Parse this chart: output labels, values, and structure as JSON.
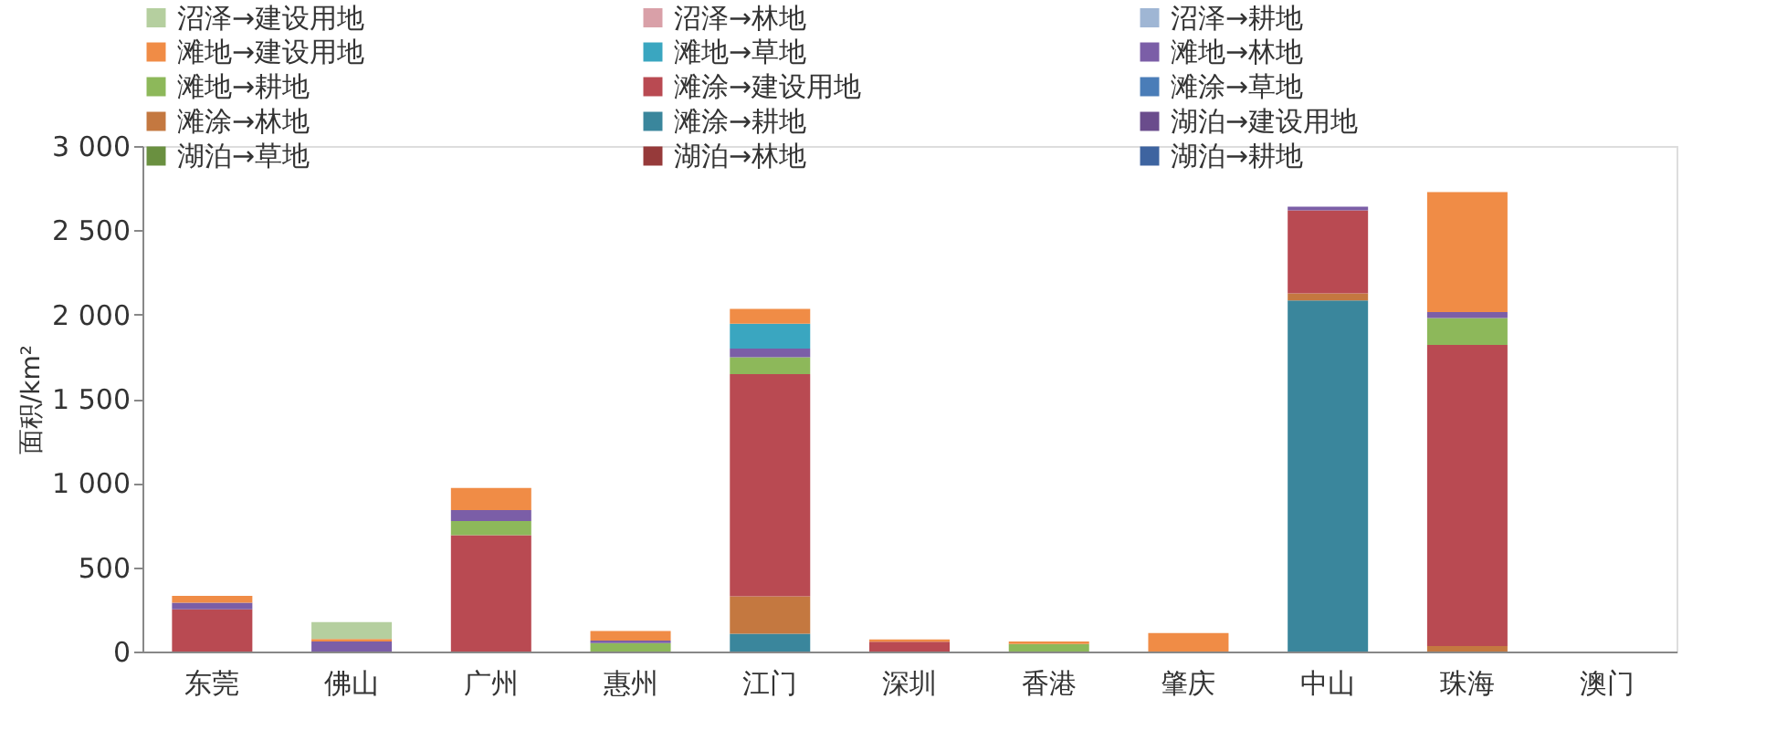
{
  "chart_data": {
    "type": "bar",
    "stacked": true,
    "ylabel": "面积/km²",
    "legend": "top left",
    "grid": false,
    "categories": [
      "东莞",
      "佛山",
      "广州",
      "惠州",
      "江门",
      "深圳",
      "香港",
      "肇庆",
      "中山",
      "珠海",
      "澳门"
    ],
    "ylim": [
      0,
      3000
    ],
    "yticks": [
      0,
      500,
      {
        "value": 1000,
        "label": "1 000"
      },
      {
        "value": 1500,
        "label": "1 500"
      },
      {
        "value": 2000,
        "label": "2 000"
      },
      {
        "value": 2500,
        "label": "2 500"
      },
      {
        "value": 3000,
        "label": "3 000"
      }
    ],
    "series": [
      {
        "name": "湖泊→耕地",
        "color": "#3e64a0",
        "values": [
          0,
          0,
          0,
          0,
          0,
          0,
          0,
          0,
          0,
          0,
          0
        ]
      },
      {
        "name": "湖泊→林地",
        "color": "#963a3a",
        "values": [
          0,
          0,
          0,
          0,
          0,
          0,
          0,
          0,
          0,
          0,
          0
        ]
      },
      {
        "name": "湖泊→草地",
        "color": "#6a9040",
        "values": [
          0,
          0,
          0,
          0,
          0,
          0,
          0,
          0,
          0,
          0,
          0
        ]
      },
      {
        "name": "湖泊→建设用地",
        "color": "#6a4c8c",
        "values": [
          0,
          0,
          0,
          0,
          0,
          0,
          0,
          0,
          0,
          0,
          0
        ]
      },
      {
        "name": "滩涂→耕地",
        "color": "#3a869c",
        "values": [
          0,
          0,
          0,
          0,
          105,
          0,
          0,
          0,
          2083,
          0,
          0
        ]
      },
      {
        "name": "滩涂→林地",
        "color": "#c47840",
        "values": [
          0,
          0,
          0,
          0,
          223,
          0,
          0,
          0,
          43,
          32,
          0
        ]
      },
      {
        "name": "滩涂→草地",
        "color": "#4a7db8",
        "values": [
          0,
          0,
          0,
          0,
          0,
          0,
          0,
          0,
          0,
          0,
          0
        ]
      },
      {
        "name": "滩涂→建设用地",
        "color": "#b94a52",
        "values": [
          250,
          0,
          690,
          0,
          1318,
          58,
          0,
          0,
          492,
          1788,
          0
        ]
      },
      {
        "name": "滩地→耕地",
        "color": "#8db85a",
        "values": [
          0,
          0,
          85,
          50,
          101,
          0,
          45,
          0,
          0,
          159,
          0
        ]
      },
      {
        "name": "滩地→林地",
        "color": "#7b5ea7",
        "values": [
          40,
          60,
          65,
          15,
          51,
          0,
          0,
          0,
          22,
          35,
          0
        ]
      },
      {
        "name": "滩地→草地",
        "color": "#3aa6c0",
        "values": [
          0,
          0,
          0,
          0,
          148,
          0,
          0,
          0,
          0,
          0,
          0
        ]
      },
      {
        "name": "滩地→建设用地",
        "color": "#f08c46",
        "values": [
          40,
          15,
          130,
          57,
          87,
          14,
          15,
          110,
          0,
          712,
          0
        ]
      },
      {
        "name": "沼泽→耕地",
        "color": "#9fb6d4",
        "values": [
          0,
          0,
          0,
          0,
          0,
          0,
          0,
          0,
          0,
          0,
          0
        ]
      },
      {
        "name": "沼泽→林地",
        "color": "#d9a0a8",
        "values": [
          0,
          0,
          0,
          0,
          0,
          0,
          0,
          0,
          0,
          0,
          0
        ]
      },
      {
        "name": "沼泽→建设用地",
        "color": "#b5cf9f",
        "values": [
          0,
          100,
          0,
          0,
          0,
          0,
          0,
          0,
          0,
          0,
          0
        ]
      }
    ]
  }
}
